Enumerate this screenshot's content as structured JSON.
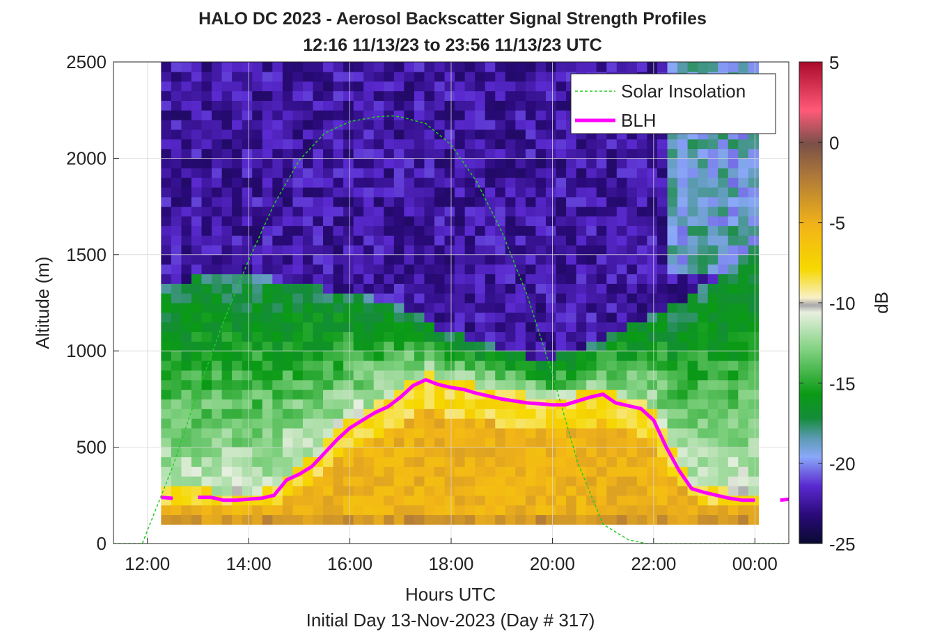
{
  "title_line1": "HALO DC 2023 - Aerosol Backscatter Signal Strength Profiles",
  "title_line2": "12:16 11/13/23 to 23:56 11/13/23  UTC",
  "xlabel": "Hours UTC",
  "ylabel": "Altitude (m)",
  "footer": "Initial Day 13-Nov-2023 (Day # 317)",
  "colorbar": {
    "label": "dB",
    "ticks": [
      "5",
      "0",
      "-5",
      "-10",
      "-15",
      "-20",
      "-25"
    ],
    "range": [
      -25,
      5
    ]
  },
  "legend": {
    "solar": "Solar Insolation",
    "blh": "BLH",
    "solar_color": "#22cc22",
    "blh_color": "#ff00ff"
  },
  "chart_data": {
    "type": "heatmap",
    "title": "HALO DC 2023 - Aerosol Backscatter Signal Strength Profiles",
    "xlabel": "Hours UTC",
    "ylabel": "Altitude (m)",
    "xlim": [
      11.33,
      24.67
    ],
    "ylim": [
      0,
      2500
    ],
    "x_ticks": [
      "12:00",
      "14:00",
      "16:00",
      "18:00",
      "20:00",
      "22:00",
      "00:00"
    ],
    "y_ticks": [
      "0",
      "500",
      "1000",
      "1500",
      "2000",
      "2500"
    ],
    "legend_position": "top-right",
    "grid": true,
    "heatmap_x_range": [
      12.27,
      23.93
    ],
    "heatmap_y_range": [
      100,
      2500
    ],
    "heatmap_summary": "Signal strength in dB: about -5 to -8 within the boundary layer, -10 to -17 in the transition/residual layer above it, about -21 to -24 in the free troposphere above ~1300 m, rising toward -18 above 1500 m after 22:00.",
    "series": [
      {
        "name": "BLH",
        "x": [
          11.33,
          12.27,
          12.5,
          13.0,
          13.25,
          13.5,
          13.75,
          14.0,
          14.25,
          14.5,
          14.75,
          15.0,
          15.25,
          15.5,
          15.75,
          16.0,
          16.25,
          16.5,
          16.75,
          17.0,
          17.25,
          17.5,
          17.75,
          18.0,
          18.25,
          18.5,
          18.75,
          19.0,
          19.25,
          19.5,
          19.75,
          20.0,
          20.25,
          20.5,
          20.75,
          21.0,
          21.25,
          21.5,
          21.75,
          22.0,
          22.25,
          22.5,
          22.75,
          23.0,
          23.25,
          23.5,
          23.75,
          24.0,
          24.5,
          24.67
        ],
        "y": [
          250,
          240,
          235,
          240,
          240,
          225,
          225,
          230,
          235,
          250,
          330,
          360,
          400,
          470,
          540,
          600,
          640,
          680,
          710,
          760,
          820,
          850,
          825,
          810,
          800,
          780,
          765,
          750,
          740,
          730,
          725,
          720,
          720,
          740,
          760,
          775,
          730,
          715,
          700,
          640,
          500,
          380,
          285,
          265,
          250,
          235,
          225,
          225,
          225,
          230
        ]
      },
      {
        "name": "Solar Insolation",
        "x": [
          11.33,
          11.9,
          12.5,
          13.0,
          13.5,
          14.0,
          14.5,
          15.0,
          15.5,
          16.0,
          16.5,
          16.83,
          17.0,
          17.5,
          18.0,
          18.5,
          19.0,
          19.5,
          20.0,
          20.5,
          21.0,
          21.5,
          21.85,
          22.0,
          23.0,
          24.67
        ],
        "y": [
          0,
          0,
          400,
          790,
          1150,
          1470,
          1760,
          1990,
          2130,
          2190,
          2215,
          2220,
          2215,
          2180,
          2070,
          1880,
          1620,
          1290,
          880,
          420,
          100,
          20,
          0,
          0,
          0,
          0
        ]
      }
    ]
  }
}
